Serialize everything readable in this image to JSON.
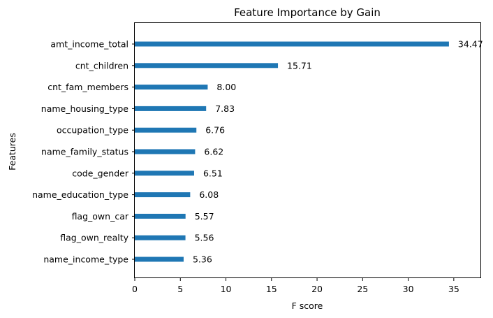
{
  "chart_data": {
    "type": "bar",
    "orientation": "horizontal",
    "title": "Feature Importance by Gain",
    "xlabel": "F score",
    "ylabel": "Features",
    "xlim": [
      0,
      38
    ],
    "xticks": [
      0,
      5,
      10,
      15,
      20,
      25,
      30,
      35
    ],
    "grid": false,
    "bar_color": "#1f77b4",
    "categories": [
      "amt_income_total",
      "cnt_children",
      "cnt_fam_members",
      "name_housing_type",
      "occupation_type",
      "name_family_status",
      "code_gender",
      "name_education_type",
      "flag_own_car",
      "flag_own_realty",
      "name_income_type"
    ],
    "values": [
      34.47,
      15.71,
      8.0,
      7.83,
      6.76,
      6.62,
      6.51,
      6.08,
      5.57,
      5.56,
      5.36
    ],
    "value_labels": [
      "34.47",
      "15.71",
      "8.00",
      "7.83",
      "6.76",
      "6.62",
      "6.51",
      "6.08",
      "5.57",
      "5.56",
      "5.36"
    ]
  }
}
